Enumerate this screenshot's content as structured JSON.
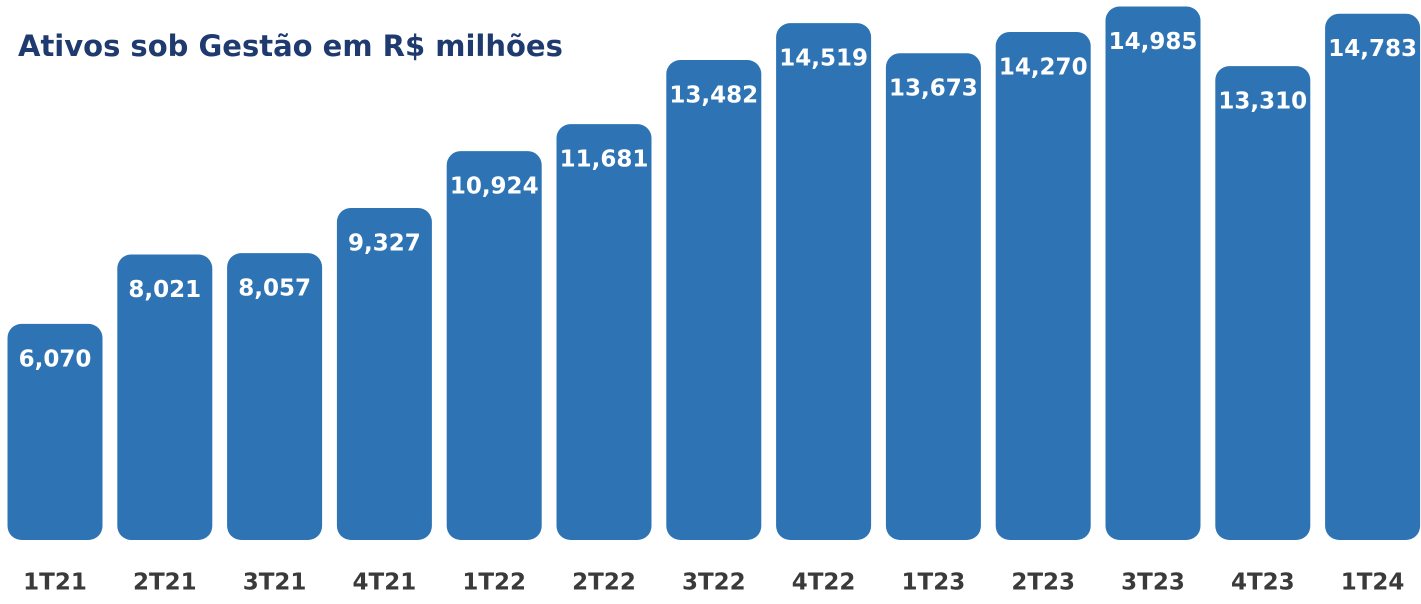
{
  "chart_data": {
    "type": "bar",
    "title": "Ativos sob Gestão em R$ milhões",
    "categories": [
      "1T21",
      "2T21",
      "3T21",
      "4T21",
      "1T22",
      "2T22",
      "3T22",
      "4T22",
      "1T23",
      "2T23",
      "3T23",
      "4T23",
      "1T24"
    ],
    "values": [
      6070,
      8021,
      8057,
      9327,
      10924,
      11681,
      13482,
      14519,
      13673,
      14270,
      14985,
      13310,
      14783
    ],
    "value_labels": [
      "6,070",
      "8,021",
      "8,057",
      "9,327",
      "10,924",
      "11,681",
      "13,482",
      "14,519",
      "13,673",
      "14,270",
      "14,985",
      "13,310",
      "14,783"
    ],
    "color": "#2e74b5",
    "ylim": [
      0,
      15000
    ]
  }
}
